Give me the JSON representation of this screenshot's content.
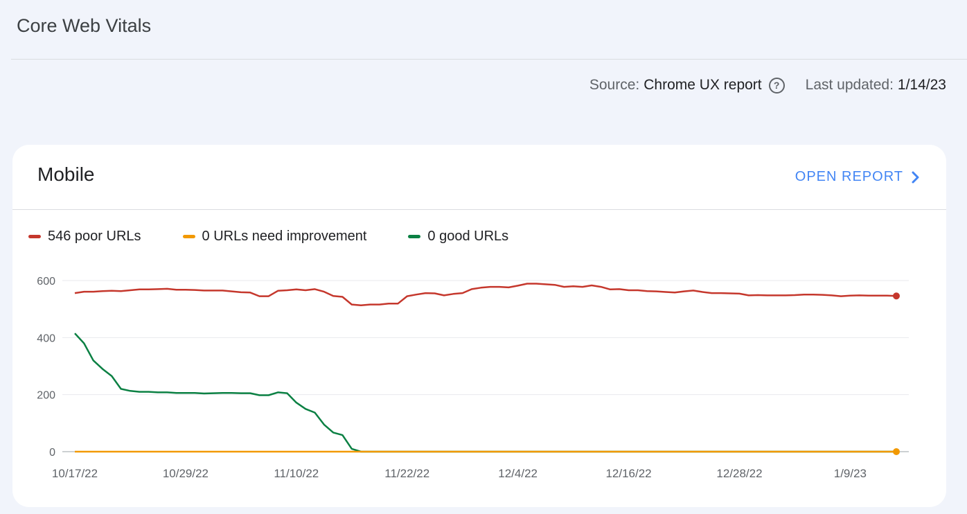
{
  "header": {
    "title": "Core Web Vitals",
    "source_label": "Source:",
    "source_value": "Chrome UX report",
    "updated_label": "Last updated:",
    "updated_value": "1/14/23"
  },
  "card": {
    "title": "Mobile",
    "open_report_label": "OPEN REPORT",
    "legend": [
      {
        "label": "546 poor URLs",
        "color": "#c5372c"
      },
      {
        "label": "0 URLs need improvement",
        "color": "#f29900"
      },
      {
        "label": "0 good URLs",
        "color": "#0b8043"
      }
    ]
  },
  "chart_data": {
    "type": "line",
    "x_start": "10/17/22",
    "x_end": "1/14/23",
    "x_ticks": [
      "10/17/22",
      "10/29/22",
      "11/10/22",
      "11/22/22",
      "12/4/22",
      "12/16/22",
      "12/28/22",
      "1/9/23"
    ],
    "y_ticks": [
      0,
      200,
      400,
      600
    ],
    "ylim": [
      0,
      600
    ],
    "grid": true,
    "legend_position": "top-left",
    "series": [
      {
        "name": "546 poor URLs",
        "color": "#c5372c",
        "values": [
          556,
          561,
          561,
          563,
          564,
          563,
          566,
          569,
          569,
          570,
          571,
          568,
          568,
          567,
          565,
          565,
          565,
          562,
          559,
          558,
          545,
          545,
          564,
          566,
          569,
          566,
          570,
          561,
          546,
          543,
          516,
          513,
          516,
          516,
          519,
          519,
          545,
          551,
          556,
          555,
          548,
          553,
          556,
          570,
          575,
          578,
          578,
          576,
          582,
          589,
          589,
          587,
          585,
          578,
          580,
          578,
          583,
          578,
          569,
          570,
          566,
          566,
          563,
          562,
          560,
          558,
          562,
          565,
          560,
          556,
          556,
          555,
          554,
          548,
          549,
          548,
          548,
          548,
          549,
          551,
          551,
          550,
          548,
          545,
          547,
          548,
          547,
          547,
          547,
          546
        ]
      },
      {
        "name": "0 URLs need improvement",
        "color": "#f29900",
        "values": [
          0,
          0,
          0,
          0,
          0,
          0,
          0,
          0,
          0,
          0,
          0,
          0,
          0,
          0,
          0,
          0,
          0,
          0,
          0,
          0,
          0,
          0,
          0,
          0,
          0,
          0,
          0,
          0,
          0,
          0,
          0,
          0,
          0,
          0,
          0,
          0,
          0,
          0,
          0,
          0,
          0,
          0,
          0,
          0,
          0,
          0,
          0,
          0,
          0,
          0,
          0,
          0,
          0,
          0,
          0,
          0,
          0,
          0,
          0,
          0,
          0,
          0,
          0,
          0,
          0,
          0,
          0,
          0,
          0,
          0,
          0,
          0,
          0,
          0,
          0,
          0,
          0,
          0,
          0,
          0,
          0,
          0,
          0,
          0,
          0,
          0,
          0,
          0,
          0,
          0
        ]
      },
      {
        "name": "0 good URLs",
        "color": "#0b8043",
        "values": [
          415,
          380,
          320,
          290,
          265,
          220,
          213,
          210,
          210,
          208,
          208,
          206,
          206,
          206,
          204,
          205,
          206,
          206,
          205,
          205,
          198,
          198,
          208,
          205,
          172,
          150,
          137,
          95,
          67,
          58,
          10,
          0,
          0,
          0,
          0,
          0,
          0,
          0,
          0,
          0,
          0,
          0,
          0,
          0,
          0,
          0,
          0,
          0,
          0,
          0,
          0,
          0,
          0,
          0,
          0,
          0,
          0,
          0,
          0,
          0,
          0,
          0,
          0,
          0,
          0,
          0,
          0,
          0,
          0,
          0,
          0,
          0,
          0,
          0,
          0,
          0,
          0,
          0,
          0,
          0,
          0,
          0,
          0,
          0,
          0,
          0,
          0,
          0,
          0,
          0
        ]
      }
    ]
  }
}
